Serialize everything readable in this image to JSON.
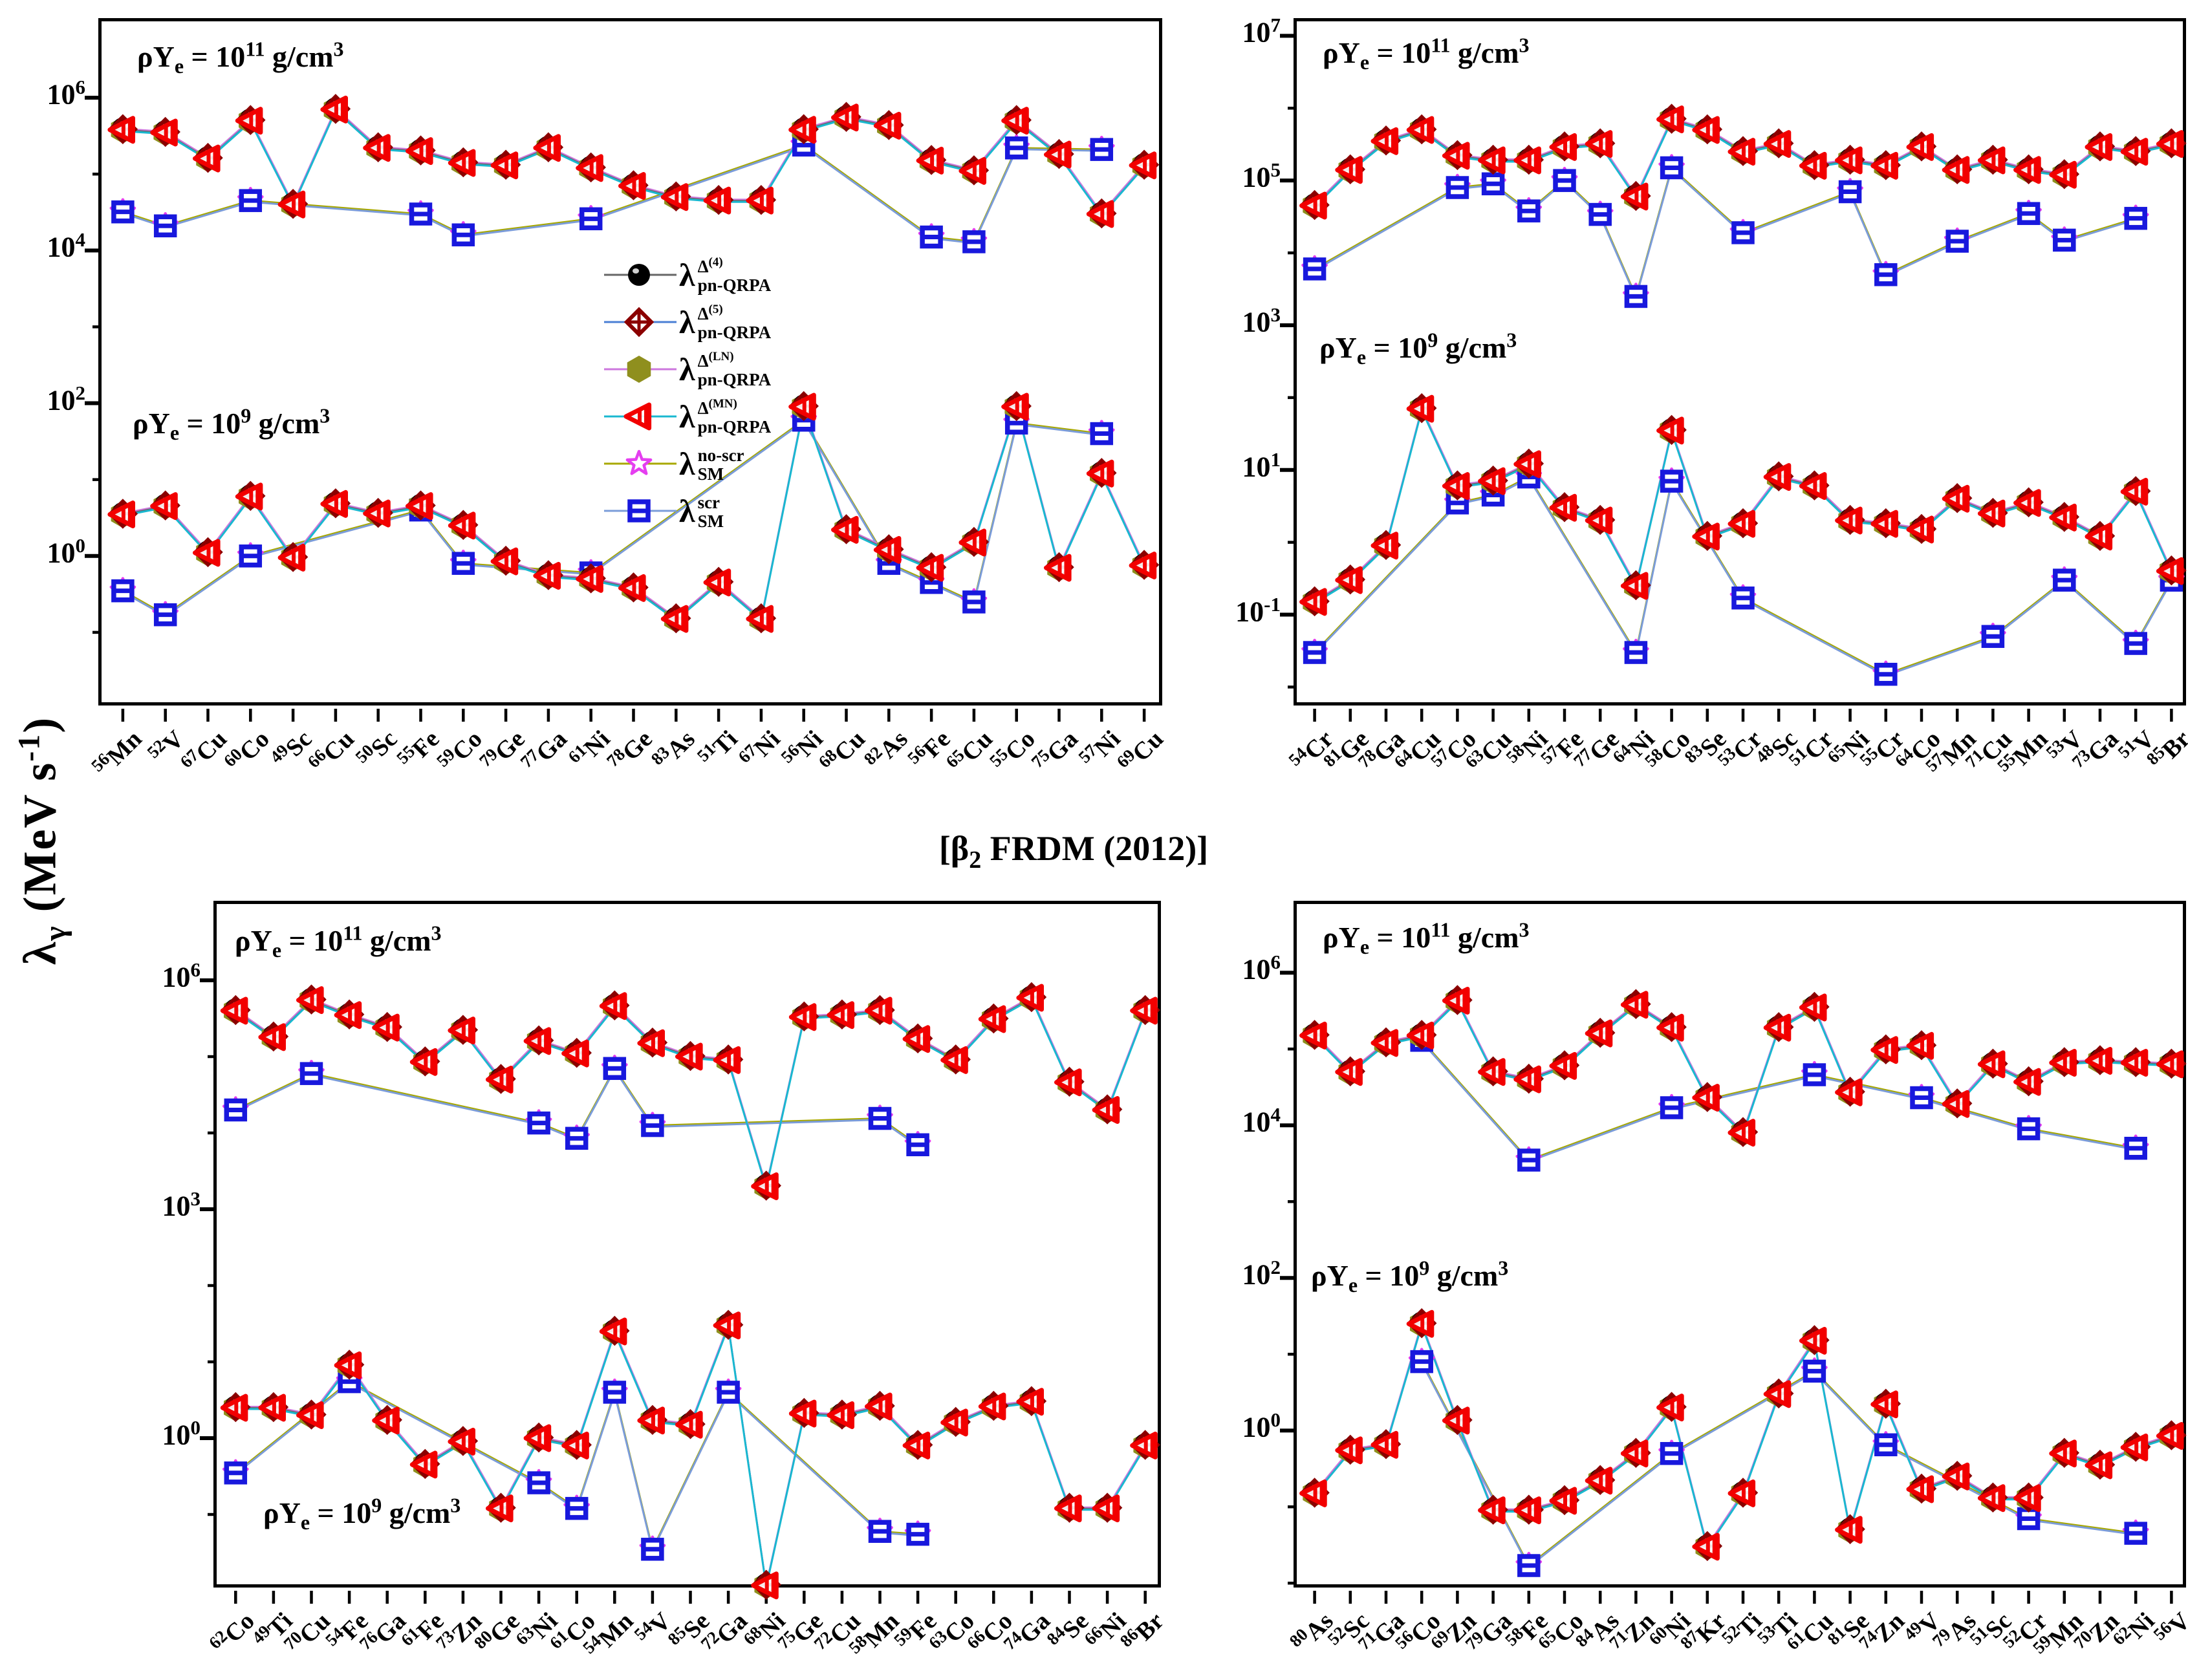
{
  "figure": {
    "y_axis_label": "λ_{γ} (MeV s^{-1})",
    "center_title": "[β_{2} FRDM (2012)]",
    "background": "#ffffff"
  },
  "legend": {
    "symbol": "λ",
    "items": [
      {
        "sup": "Δ^{(4)}",
        "sub": "pn-QRPA",
        "marker": "circle",
        "marker_color": "#000000",
        "line_color": "#666666"
      },
      {
        "sup": "Δ^{(5)}",
        "sub": "pn-QRPA",
        "marker": "diamond",
        "marker_color": "#8b0000",
        "line_color": "#4a7fd4"
      },
      {
        "sup": "Δ^{(LN)}",
        "sub": "pn-QRPA",
        "marker": "hexagon",
        "marker_color": "#8f8f1e",
        "line_color": "#cc77dd"
      },
      {
        "sup": "Δ^{(MN)}",
        "sub": "pn-QRPA",
        "marker": "triangle-left",
        "marker_color": "#f20000",
        "line_color": "#19b8d0"
      },
      {
        "sup": "no-scr",
        "sub": "SM",
        "marker": "star",
        "marker_color": "#e53ef0",
        "line_color": "#a8a800"
      },
      {
        "sup": "scr",
        "sub": "SM",
        "marker": "square-bar",
        "marker_color": "#1818dd",
        "line_color": "#7b9cd9"
      }
    ],
    "overlap_note": "The four pn-QRPA markers plot on top of each other (cluster values), and the two SM markers plot on top of each other."
  },
  "chart_data": [
    {
      "panel": "top-left",
      "type": "line",
      "log_y": true,
      "ylim_exp": [
        -2,
        7
      ],
      "yticks_exp": [
        6,
        4,
        2,
        0
      ],
      "labels": {
        "high": "ρY_{e} = 10^{11} g/cm^{3}",
        "low": "ρY_{e} = 10^{9} g/cm^{3}"
      },
      "categories": [
        "56Mn",
        "52V",
        "67Cu",
        "60Co",
        "49Sc",
        "66Cu",
        "50Sc",
        "55Fe",
        "59Co",
        "79Ge",
        "77Ga",
        "61Ni",
        "78Ge",
        "83As",
        "51Ti",
        "67Ni",
        "56Ni",
        "68Cu",
        "82As",
        "56Fe",
        "65Cu",
        "55Co",
        "75Ga",
        "57Ni",
        "69Cu"
      ],
      "groups": {
        "rho11": {
          "qrpa": [
            380000.0,
            350000.0,
            160000.0,
            500000.0,
            40000.0,
            700000.0,
            220000.0,
            200000.0,
            140000.0,
            130000.0,
            220000.0,
            120000.0,
            70000.0,
            50000.0,
            45000.0,
            45000.0,
            380000.0,
            550000.0,
            430000.0,
            150000.0,
            110000.0,
            500000.0,
            180000.0,
            30000.0,
            130000.0
          ],
          "sm": [
            32000.0,
            21000.0,
            null,
            45000.0,
            null,
            null,
            null,
            30000.0,
            16000.0,
            null,
            null,
            26000.0,
            null,
            null,
            null,
            null,
            240000.0,
            null,
            null,
            15000.0,
            13000.0,
            220000.0,
            null,
            210000.0,
            null
          ]
        },
        "rho9": {
          "qrpa": [
            3.5,
            4.5,
            1.1,
            6.0,
            0.95,
            4.8,
            3.6,
            4.5,
            2.5,
            0.85,
            0.55,
            0.5,
            0.38,
            0.15,
            0.45,
            0.15,
            90,
            2.2,
            1.2,
            0.7,
            1.5,
            90,
            0.7,
            12,
            0.75
          ],
          "sm": [
            0.35,
            0.17,
            null,
            1.0,
            null,
            null,
            null,
            4.0,
            0.8,
            null,
            null,
            0.6,
            null,
            null,
            null,
            null,
            60,
            null,
            0.8,
            0.45,
            0.25,
            55,
            null,
            40,
            null
          ]
        }
      }
    },
    {
      "panel": "top-right",
      "type": "line",
      "log_y": true,
      "ylim_exp": [
        -2.3,
        7.2
      ],
      "yticks_exp": [
        7,
        5,
        3,
        1,
        -1
      ],
      "labels": {
        "high": "ρY_{e} = 10^{11} g/cm^{3}",
        "low": "ρY_{e} = 10^{9} g/cm^{3}"
      },
      "categories": [
        "54Cr",
        "81Ge",
        "78Ga",
        "64Cu",
        "57Co",
        "63Cu",
        "58Ni",
        "57Fe",
        "77Ge",
        "64Ni",
        "58Co",
        "83Se",
        "53Cr",
        "48Sc",
        "51Cr",
        "65Ni",
        "55Cr",
        "64Co",
        "57Mn",
        "71Cu",
        "55Mn",
        "53V",
        "73Ga",
        "51V",
        "85Br"
      ],
      "groups": {
        "rho11": {
          "qrpa": [
            45000.0,
            140000.0,
            350000.0,
            500000.0,
            220000.0,
            190000.0,
            190000.0,
            290000.0,
            320000.0,
            60000.0,
            700000.0,
            500000.0,
            250000.0,
            320000.0,
            160000.0,
            190000.0,
            160000.0,
            290000.0,
            140000.0,
            190000.0,
            140000.0,
            120000.0,
            290000.0,
            250000.0,
            320000.0
          ],
          "sm": [
            6000.0,
            null,
            null,
            null,
            80000.0,
            90000.0,
            38000.0,
            100000.0,
            34000.0,
            2500.0,
            150000.0,
            null,
            19000.0,
            null,
            null,
            70000.0,
            5000.0,
            null,
            14500.0,
            null,
            35000.0,
            15000.0,
            null,
            30000.0,
            null
          ]
        },
        "rho9": {
          "qrpa": [
            0.15,
            0.3,
            0.9,
            70,
            6,
            7,
            12,
            3,
            2,
            0.25,
            35,
            1.2,
            1.8,
            8,
            6,
            2,
            1.8,
            1.5,
            4,
            2.5,
            3.5,
            2.2,
            1.2,
            5,
            0.4
          ],
          "sm": [
            0.03,
            null,
            null,
            null,
            3.5,
            4.5,
            8,
            null,
            null,
            0.03,
            7,
            null,
            0.17,
            null,
            null,
            null,
            0.015,
            null,
            null,
            0.05,
            null,
            0.3,
            null,
            0.04,
            0.3
          ]
        }
      }
    },
    {
      "panel": "bottom-left",
      "type": "line",
      "log_y": true,
      "ylim_exp": [
        -2,
        7
      ],
      "yticks_exp": [
        6,
        3,
        0
      ],
      "labels": {
        "high": "ρY_{e} = 10^{11} g/cm^{3}",
        "low": "ρY_{e} = 10^{9} g/cm^{3}"
      },
      "categories": [
        "62Co",
        "49Ti",
        "70Cu",
        "54Fe",
        "76Ga",
        "61Fe",
        "73Zn",
        "80Ge",
        "63Ni",
        "61Co",
        "54Mn",
        "54V",
        "85Se",
        "72Ga",
        "68Ni",
        "75Ge",
        "72Cu",
        "58Mn",
        "59Fe",
        "63Co",
        "66Co",
        "74Ga",
        "84Se",
        "66Ni",
        "86Br"
      ],
      "groups": {
        "rho11": {
          "qrpa": [
            400000.0,
            180000.0,
            550000.0,
            350000.0,
            240000.0,
            85000.0,
            220000.0,
            50000.0,
            160000.0,
            110000.0,
            460000.0,
            150000.0,
            100000.0,
            90000.0,
            2000.0,
            330000.0,
            350000.0,
            400000.0,
            170000.0,
            90000.0,
            310000.0,
            590000.0,
            46000.0,
            20000.0,
            400000.0
          ],
          "sm": [
            20000.0,
            null,
            60000.0,
            null,
            null,
            null,
            null,
            null,
            13500.0,
            8500.0,
            70000.0,
            12500.0,
            null,
            null,
            null,
            null,
            null,
            15500.0,
            7000.0,
            null,
            null,
            null,
            null,
            null,
            null
          ]
        },
        "rho9": {
          "qrpa": [
            2.5,
            2.5,
            2.0,
            9.0,
            1.7,
            0.45,
            0.9,
            0.12,
            1.0,
            0.8,
            25,
            1.7,
            1.5,
            30,
            0.006,
            2.1,
            2.0,
            2.6,
            0.8,
            1.6,
            2.6,
            3.0,
            0.12,
            0.12,
            0.8
          ],
          "sm": [
            0.35,
            null,
            null,
            5.5,
            null,
            null,
            null,
            null,
            0.26,
            0.12,
            4.0,
            0.035,
            null,
            4.0,
            null,
            null,
            null,
            0.06,
            0.055,
            null,
            null,
            null,
            null,
            null,
            null
          ]
        }
      }
    },
    {
      "panel": "bottom-right",
      "type": "line",
      "log_y": true,
      "ylim_exp": [
        -2.1,
        6.9
      ],
      "yticks_exp": [
        6,
        4,
        2,
        0
      ],
      "labels": {
        "high": "ρY_{e} = 10^{11} g/cm^{3}",
        "low": "ρY_{e} = 10^{9} g/cm^{3}"
      },
      "categories": [
        "80As",
        "52Sc",
        "71Ga",
        "56Co",
        "69Zn",
        "79Ga",
        "58Fe",
        "65Co",
        "84As",
        "71Zn",
        "60Ni",
        "87Kr",
        "52Ti",
        "53Ti",
        "61Cu",
        "81Se",
        "74Zn",
        "49V",
        "79As",
        "51Sc",
        "52Cr",
        "59Mn",
        "70Zn",
        "62Ni",
        "56V"
      ],
      "groups": {
        "rho11": {
          "qrpa": [
            150000.0,
            50000.0,
            120000.0,
            150000.0,
            430000.0,
            50000.0,
            40000.0,
            60000.0,
            160000.0,
            380000.0,
            190000.0,
            23000.0,
            8000.0,
            190000.0,
            350000.0,
            27000.0,
            97000.0,
            110000.0,
            19000.0,
            63000.0,
            37000.0,
            66000.0,
            70000.0,
            66000.0,
            63000.0
          ],
          "sm": [
            null,
            null,
            null,
            130000.0,
            null,
            null,
            3500.0,
            null,
            null,
            null,
            17000.0,
            null,
            null,
            null,
            46000.0,
            null,
            null,
            23000.0,
            null,
            null,
            9000.0,
            null,
            null,
            5000.0,
            null
          ]
        },
        "rho9": {
          "qrpa": [
            0.15,
            0.55,
            0.65,
            25,
            1.35,
            0.09,
            0.09,
            0.12,
            0.22,
            0.5,
            2.0,
            0.03,
            0.15,
            3.0,
            15,
            0.05,
            2.2,
            0.17,
            0.25,
            0.13,
            0.13,
            0.5,
            0.35,
            0.6,
            0.85
          ],
          "sm": [
            null,
            null,
            null,
            8.0,
            null,
            null,
            0.017,
            null,
            null,
            null,
            0.5,
            null,
            null,
            null,
            6.0,
            null,
            0.65,
            null,
            null,
            null,
            0.07,
            null,
            null,
            0.045,
            null
          ]
        }
      }
    }
  ]
}
